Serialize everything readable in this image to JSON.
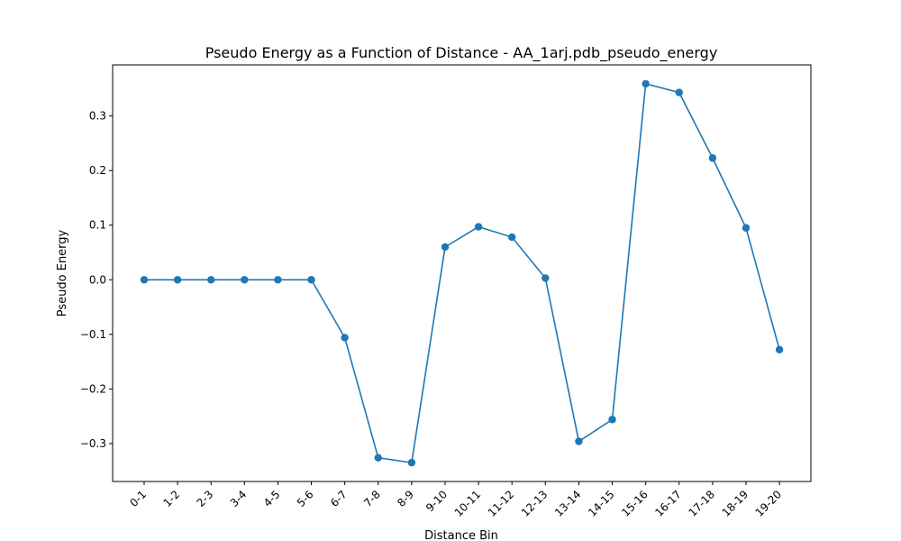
{
  "chart_data": {
    "type": "line",
    "title": "Pseudo Energy as a Function of Distance - AA_1arj.pdb_pseudo_energy",
    "xlabel": "Distance Bin",
    "ylabel": "Pseudo Energy",
    "categories": [
      "0-1",
      "1-2",
      "2-3",
      "3-4",
      "4-5",
      "5-6",
      "6-7",
      "7-8",
      "8-9",
      "9-10",
      "10-11",
      "11-12",
      "12-13",
      "13-14",
      "14-15",
      "15-16",
      "16-17",
      "17-18",
      "18-19",
      "19-20"
    ],
    "series": [
      {
        "values": [
          0.0,
          0.0,
          0.0,
          0.0,
          0.0,
          0.0,
          -0.106,
          -0.326,
          -0.335,
          0.06,
          0.097,
          0.078,
          0.003,
          -0.296,
          -0.256,
          0.359,
          0.343,
          0.223,
          0.095,
          -0.128
        ]
      }
    ],
    "ylim": [
      -0.3695,
      0.3935
    ],
    "yticks": [
      -0.3,
      -0.2,
      -0.1,
      0.0,
      0.1,
      0.2,
      0.3
    ],
    "ytick_labels": [
      "−0.3",
      "−0.2",
      "−0.1",
      "0.0",
      "0.1",
      "0.2",
      "0.3"
    ],
    "line_color": "#1f77b4",
    "marker": "circle",
    "grid": false,
    "legend": "none"
  }
}
